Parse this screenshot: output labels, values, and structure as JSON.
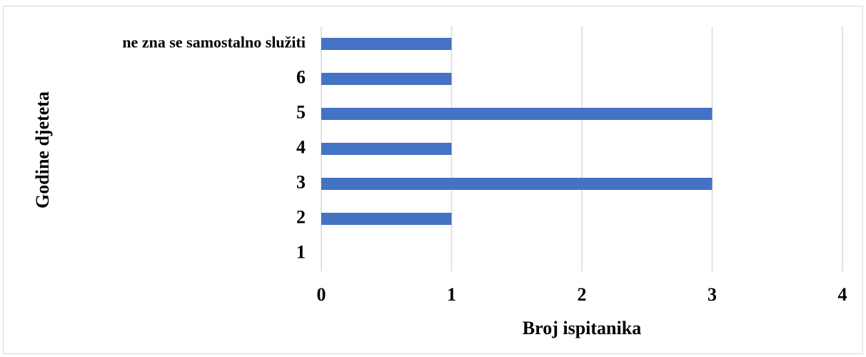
{
  "chart_data": {
    "type": "bar",
    "orientation": "horizontal",
    "xlabel": "Broj ispitanika",
    "ylabel": "Godine djeteta",
    "categories": [
      "1",
      "2",
      "3",
      "4",
      "5",
      "6",
      "ne zna se samostalno služiti"
    ],
    "values": [
      0,
      1,
      3,
      1,
      3,
      1,
      1
    ],
    "color": "#4472c4",
    "xlim": [
      0,
      4
    ],
    "xticks": [
      0,
      1,
      2,
      3,
      4
    ],
    "grid": true
  }
}
